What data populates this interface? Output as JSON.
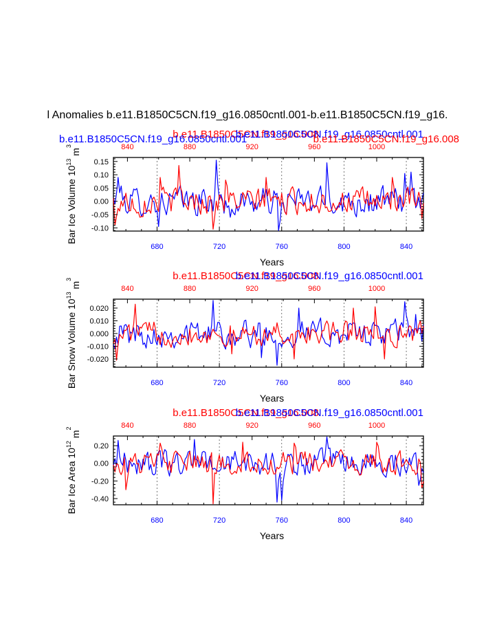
{
  "page": {
    "title": "l Anomalies b.e11.B1850C5CN.f19_g16.0850cntl.001-b.e11.B1850C5CN.f19_g16."
  },
  "colors": {
    "blue": "#0000ff",
    "red": "#ff0000",
    "axis": "#000000",
    "grid": "#555555"
  },
  "chart_data": [
    {
      "type": "line",
      "ylabel": "Bar Ice Volume 10",
      "ylabel_exp": "13",
      "ylabel_unit": " m",
      "ylabel_unit_exp": "3",
      "xlabel": "Years",
      "ylim": [
        -0.112,
        0.165
      ],
      "yticks": [
        -0.1,
        -0.05,
        0.0,
        0.05,
        0.1,
        0.15
      ],
      "ytick_labels": [
        "-0.10",
        "-0.05",
        "0.00",
        "0.05",
        "0.10",
        "0.15"
      ],
      "bottom_axis": {
        "range": [
          652,
          851
        ],
        "ticks": [
          680,
          720,
          760,
          800,
          840
        ],
        "labels": [
          "680",
          "720",
          "760",
          "800",
          "840"
        ]
      },
      "top_axis": {
        "range": [
          831,
          1030
        ],
        "ticks": [
          840,
          880,
          920,
          960,
          1000
        ],
        "labels": [
          "840",
          "880",
          "920",
          "960",
          "1000"
        ]
      },
      "vgrid_years": [
        680,
        720,
        760,
        800,
        840
      ],
      "top_titles": [
        {
          "text": "b.e11.B1850C5CN.f19_g16.008",
          "color": "red",
          "pos": "center"
        },
        {
          "text": "b.e11.B1850C5CN.f19_g16.0850cntl.001",
          "color": "blue",
          "pos": "right"
        },
        {
          "text": "b.e11.B1850C5CN.f19_g16.0850cntl.001",
          "color": "blue",
          "pos": "left-offset"
        },
        {
          "text": "b.e11.B1850C5CN.f19_g16.008",
          "color": "red",
          "pos": "right-offset"
        }
      ],
      "series": [
        {
          "name": "b.e11.B1850C5CN.f19_g16.0850cntl.001",
          "color": "blue",
          "x_start": 652,
          "x_end": 851,
          "n": 200,
          "amp": 0.045,
          "spikes": [
            [
              655,
              0.09
            ],
            [
              681,
              -0.095
            ],
            [
              718,
              0.155
            ],
            [
              727,
              -0.06
            ],
            [
              758,
              -0.11
            ],
            [
              789,
              0.145
            ],
            [
              839,
              0.105
            ],
            [
              843,
              0.11
            ]
          ]
        },
        {
          "name": "b.e11.B1850C5CN.f19_g16.008",
          "color": "red",
          "x_start": 652,
          "x_end": 851,
          "n": 200,
          "amp": 0.04,
          "spikes": [
            [
              653,
              -0.09
            ],
            [
              669,
              -0.06
            ],
            [
              682,
              0.09
            ],
            [
              694,
              0.135
            ],
            [
              716,
              -0.105
            ],
            [
              724,
              0.08
            ],
            [
              750,
              0.09
            ],
            [
              831,
              0.09
            ],
            [
              850,
              -0.065
            ]
          ]
        }
      ]
    },
    {
      "type": "line",
      "ylabel": "Bar Snow Volume 10",
      "ylabel_exp": "13",
      "ylabel_unit": " m",
      "ylabel_unit_exp": "3",
      "xlabel": "Years",
      "ylim": [
        -0.0265,
        0.027
      ],
      "yticks": [
        -0.02,
        -0.01,
        0.0,
        0.01,
        0.02
      ],
      "ytick_labels": [
        "-0.020",
        "-0.010",
        "0.000",
        "0.010",
        "0.020"
      ],
      "bottom_axis": {
        "range": [
          652,
          851
        ],
        "ticks": [
          680,
          720,
          760,
          800,
          840
        ],
        "labels": [
          "680",
          "720",
          "760",
          "800",
          "840"
        ]
      },
      "top_axis": {
        "range": [
          831,
          1030
        ],
        "ticks": [
          840,
          880,
          920,
          960,
          1000
        ],
        "labels": [
          "840",
          "880",
          "920",
          "960",
          "1000"
        ]
      },
      "vgrid_years": [
        680,
        720,
        760,
        800,
        840
      ],
      "top_titles": [
        {
          "text": "b.e11.B1850C5CN.f19_g16.008",
          "color": "red",
          "pos": "center"
        },
        {
          "text": "b.e11.B1850C5CN.f19_g16.0850cntl.001",
          "color": "blue",
          "pos": "right"
        }
      ],
      "series": [
        {
          "name": "b.e11.B1850C5CN.f19_g16.0850cntl.001",
          "color": "blue",
          "x_start": 652,
          "x_end": 851,
          "n": 200,
          "amp": 0.009,
          "spikes": [
            [
              716,
              0.026
            ],
            [
              747,
              -0.019
            ],
            [
              757,
              -0.025
            ],
            [
              771,
              0.02
            ],
            [
              839,
              0.025
            ],
            [
              846,
              0.015
            ]
          ]
        },
        {
          "name": "b.e11.B1850C5CN.f19_g16.008",
          "color": "red",
          "x_start": 652,
          "x_end": 851,
          "n": 200,
          "amp": 0.008,
          "spikes": [
            [
              654,
              -0.021
            ],
            [
              666,
              0.023
            ],
            [
              728,
              -0.016
            ],
            [
              768,
              -0.02
            ],
            [
              806,
              0.02
            ],
            [
              820,
              0.021
            ],
            [
              826,
              -0.02
            ]
          ]
        }
      ]
    },
    {
      "type": "line",
      "ylabel": "Bar Ice Area 10",
      "ylabel_exp": "12",
      "ylabel_unit": " m",
      "ylabel_unit_exp": "2",
      "xlabel": "Years",
      "ylim": [
        -0.47,
        0.31
      ],
      "yticks": [
        -0.4,
        -0.2,
        0.0,
        0.2
      ],
      "ytick_labels": [
        "-0.40",
        "-0.20",
        "0.00",
        "0.20"
      ],
      "bottom_axis": {
        "range": [
          652,
          851
        ],
        "ticks": [
          680,
          720,
          760,
          800,
          840
        ],
        "labels": [
          "680",
          "720",
          "760",
          "800",
          "840"
        ]
      },
      "top_axis": {
        "range": [
          831,
          1030
        ],
        "ticks": [
          840,
          880,
          920,
          960,
          1000
        ],
        "labels": [
          "840",
          "880",
          "920",
          "960",
          "1000"
        ]
      },
      "vgrid_years": [
        680,
        720,
        760,
        800,
        840
      ],
      "top_titles": [
        {
          "text": "b.e11.B1850C5CN.f19_g16.008",
          "color": "red",
          "pos": "center"
        },
        {
          "text": "b.e11.B1850C5CN.f19_g16.0850cntl.001",
          "color": "blue",
          "pos": "right"
        }
      ],
      "series": [
        {
          "name": "b.e11.B1850C5CN.f19_g16.0850cntl.001",
          "color": "blue",
          "x_start": 652,
          "x_end": 851,
          "n": 200,
          "amp": 0.12,
          "spikes": [
            [
              655,
              0.26
            ],
            [
              704,
              0.27
            ],
            [
              757,
              -0.44
            ],
            [
              760,
              -0.42
            ],
            [
              789,
              0.3
            ],
            [
              848,
              -0.25
            ]
          ]
        },
        {
          "name": "b.e11.B1850C5CN.f19_g16.008",
          "color": "red",
          "x_start": 652,
          "x_end": 851,
          "n": 200,
          "amp": 0.11,
          "spikes": [
            [
              660,
              -0.3
            ],
            [
              682,
              0.23
            ],
            [
              716,
              -0.46
            ],
            [
              735,
              0.24
            ],
            [
              768,
              0.23
            ],
            [
              821,
              0.24
            ],
            [
              850,
              -0.28
            ]
          ]
        }
      ]
    }
  ]
}
